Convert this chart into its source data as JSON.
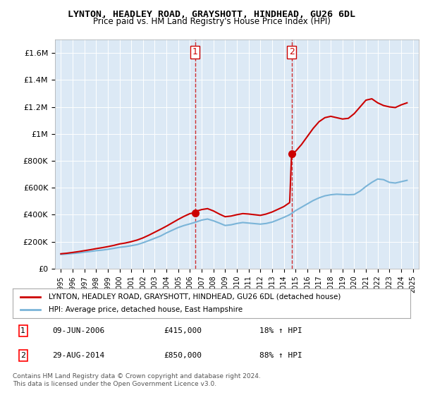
{
  "title": "LYNTON, HEADLEY ROAD, GRAYSHOTT, HINDHEAD, GU26 6DL",
  "subtitle": "Price paid vs. HM Land Registry's House Price Index (HPI)",
  "sale1_date": "09-JUN-2006",
  "sale1_price": 415000,
  "sale1_label": "18% ↑ HPI",
  "sale2_date": "29-AUG-2014",
  "sale2_price": 850000,
  "sale2_label": "88% ↑ HPI",
  "sale1_x": 2006.44,
  "sale2_x": 2014.66,
  "ylim": [
    0,
    1700000
  ],
  "xlim": [
    1994.5,
    2025.5
  ],
  "yticks": [
    0,
    200000,
    400000,
    600000,
    800000,
    1000000,
    1200000,
    1400000,
    1600000
  ],
  "ytick_labels": [
    "£0",
    "£200K",
    "£400K",
    "£600K",
    "£800K",
    "£1M",
    "£1.2M",
    "£1.4M",
    "£1.6M"
  ],
  "background_color": "#ffffff",
  "plot_bg_color": "#dce9f5",
  "hpi_color": "#7ab4d8",
  "price_color": "#cc0000",
  "vline_color": "#cc0000",
  "legend_label_price": "LYNTON, HEADLEY ROAD, GRAYSHOTT, HINDHEAD, GU26 6DL (detached house)",
  "legend_label_hpi": "HPI: Average price, detached house, East Hampshire",
  "footer": "Contains HM Land Registry data © Crown copyright and database right 2024.\nThis data is licensed under the Open Government Licence v3.0.",
  "hpi_years": [
    1995,
    1995.5,
    1996,
    1996.5,
    1997,
    1997.5,
    1998,
    1998.5,
    1999,
    1999.5,
    2000,
    2000.5,
    2001,
    2001.5,
    2002,
    2002.5,
    2003,
    2003.5,
    2004,
    2004.5,
    2005,
    2005.5,
    2006,
    2006.5,
    2007,
    2007.5,
    2008,
    2008.5,
    2009,
    2009.5,
    2010,
    2010.5,
    2011,
    2011.5,
    2012,
    2012.5,
    2013,
    2013.5,
    2014,
    2014.5,
    2015,
    2015.5,
    2016,
    2016.5,
    2017,
    2017.5,
    2018,
    2018.5,
    2019,
    2019.5,
    2020,
    2020.5,
    2021,
    2021.5,
    2022,
    2022.5,
    2023,
    2023.5,
    2024,
    2024.5
  ],
  "hpi_values": [
    105000,
    108000,
    112000,
    116000,
    122000,
    127000,
    133000,
    137000,
    143000,
    150000,
    158000,
    163000,
    170000,
    178000,
    192000,
    208000,
    225000,
    242000,
    265000,
    285000,
    305000,
    320000,
    332000,
    345000,
    360000,
    368000,
    355000,
    338000,
    320000,
    325000,
    335000,
    342000,
    338000,
    334000,
    330000,
    335000,
    345000,
    362000,
    380000,
    400000,
    430000,
    455000,
    480000,
    505000,
    525000,
    540000,
    548000,
    552000,
    550000,
    548000,
    550000,
    575000,
    610000,
    640000,
    665000,
    660000,
    640000,
    635000,
    645000,
    655000
  ],
  "price_years": [
    1995,
    1995.5,
    1996,
    1996.5,
    1997,
    1997.5,
    1998,
    1998.5,
    1999,
    1999.5,
    2000,
    2000.5,
    2001,
    2001.5,
    2002,
    2002.5,
    2003,
    2003.5,
    2004,
    2004.5,
    2005,
    2005.5,
    2006,
    2006.44,
    2006.5,
    2007,
    2007.5,
    2008,
    2008.5,
    2009,
    2009.5,
    2010,
    2010.5,
    2011,
    2011.5,
    2012,
    2012.5,
    2013,
    2013.5,
    2014,
    2014.5,
    2014.66,
    2015,
    2015.5,
    2016,
    2016.5,
    2017,
    2017.5,
    2018,
    2018.5,
    2019,
    2019.5,
    2020,
    2020.5,
    2021,
    2021.5,
    2022,
    2022.5,
    2023,
    2023.5,
    2024,
    2024.5
  ],
  "price_values": [
    110000,
    114000,
    120000,
    126000,
    133000,
    140000,
    148000,
    155000,
    163000,
    172000,
    183000,
    190000,
    200000,
    212000,
    228000,
    248000,
    270000,
    292000,
    315000,
    340000,
    365000,
    388000,
    408000,
    415000,
    425000,
    438000,
    445000,
    428000,
    405000,
    385000,
    390000,
    400000,
    408000,
    405000,
    400000,
    395000,
    405000,
    420000,
    440000,
    460000,
    490000,
    850000,
    870000,
    920000,
    980000,
    1040000,
    1090000,
    1120000,
    1130000,
    1120000,
    1110000,
    1115000,
    1150000,
    1200000,
    1250000,
    1260000,
    1230000,
    1210000,
    1200000,
    1195000,
    1215000,
    1230000
  ]
}
